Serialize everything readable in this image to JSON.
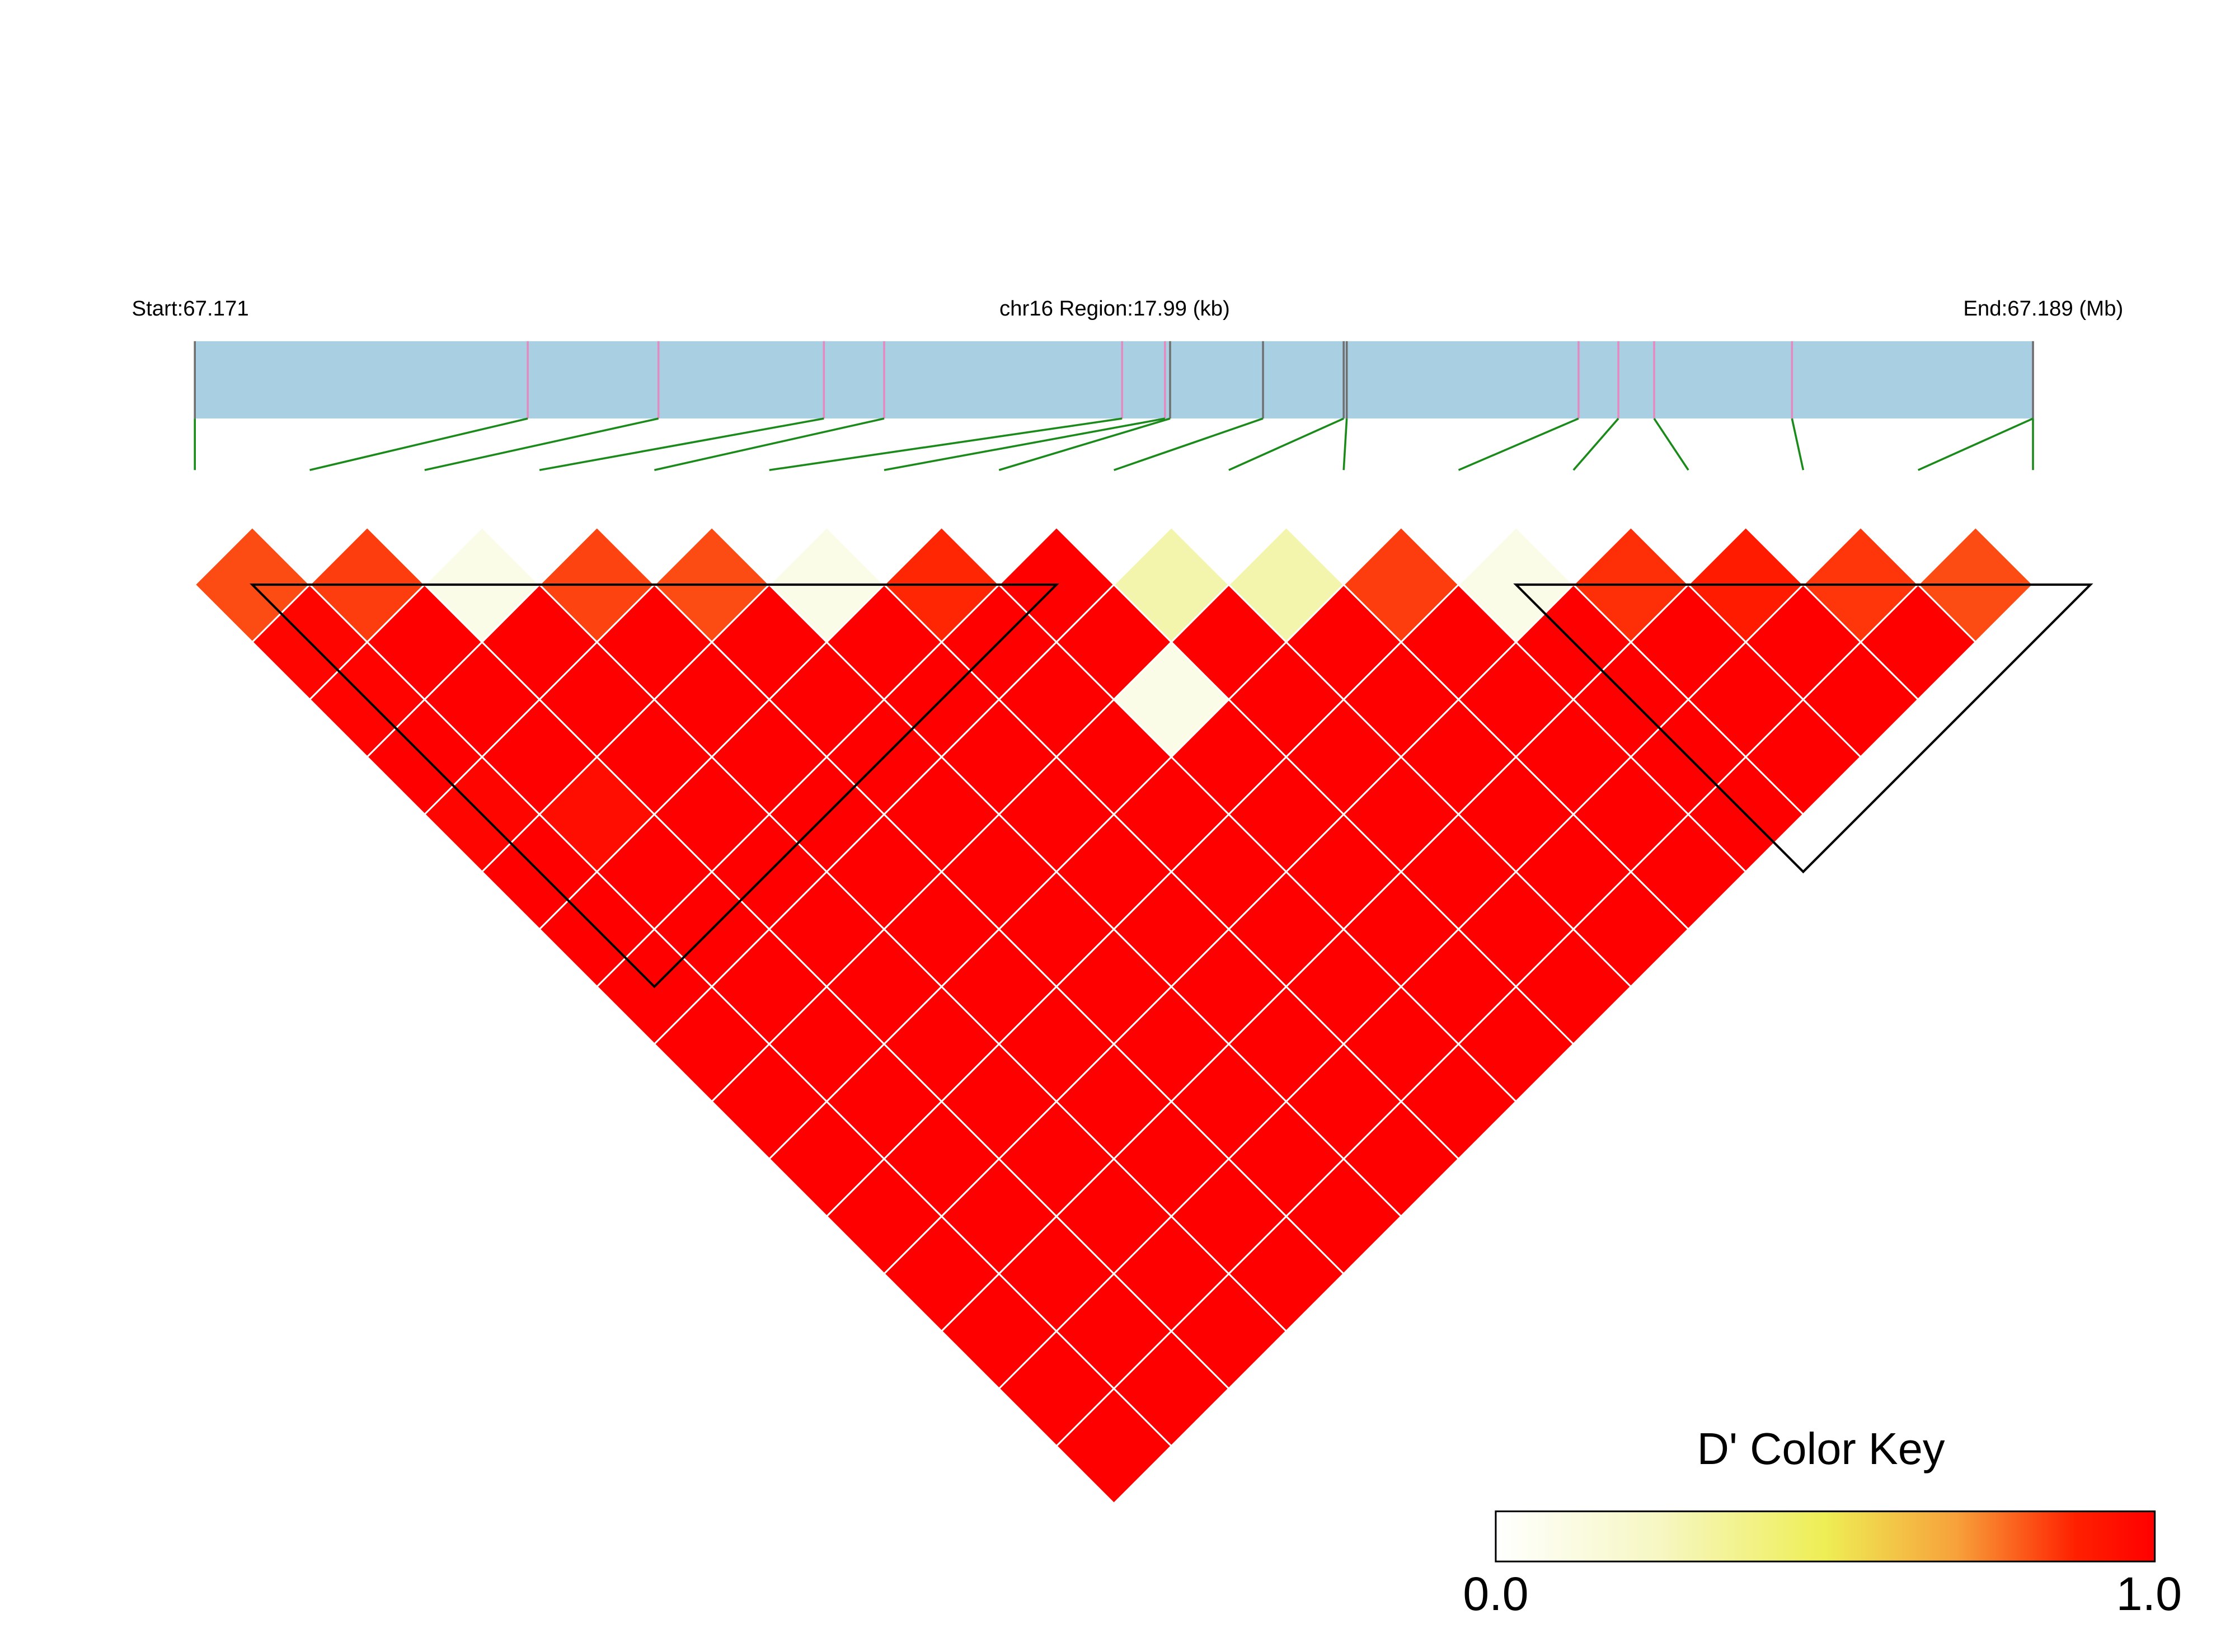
{
  "header": {
    "start_label": "Start:67.171",
    "region_label": "chr16 Region:17.99 (kb)",
    "end_label": "End:67.189 (Mb)"
  },
  "legend": {
    "title": "D' Color Key",
    "min_label": "0.0",
    "max_label": "1.0",
    "gradient_colors": [
      "#ffffff",
      "#f6f7c2",
      "#eeee55",
      "#f7a13a",
      "#ff2000",
      "#ff0000"
    ]
  },
  "colors": {
    "gene_bar": "#a8cfe2",
    "snp_marker_pink": "#e58ac0",
    "snp_marker_gray": "#707070",
    "connector_line": "#1a8a1a",
    "block_outline": "#000000",
    "cell_border": "#ffffff"
  },
  "chart_data": {
    "type": "heatmap",
    "title": "",
    "subtitle": "chr16 Region:17.99 (kb)",
    "region": {
      "chromosome": "chr16",
      "start_mb": 67.171,
      "end_mb": 67.189,
      "length_kb": 17.99
    },
    "value_range": [
      0.0,
      1.0
    ],
    "snp_count": 17,
    "snp_positions_mb": [
      67.171,
      67.17426,
      67.17554,
      67.17716,
      67.17775,
      67.18008,
      67.1805,
      67.18055,
      67.18146,
      67.18225,
      67.18228,
      67.18455,
      67.18494,
      67.18529,
      67.18664,
      67.189,
      67.189
    ],
    "snp_marker_colors": [
      "gray",
      "pink",
      "pink",
      "pink",
      "pink",
      "pink",
      "pink",
      "gray",
      "gray",
      "gray",
      "gray",
      "pink",
      "pink",
      "pink",
      "pink",
      "pink",
      "gray"
    ],
    "haplotype_blocks": [
      [
        2,
        8
      ],
      [
        13,
        17
      ]
    ],
    "dprime_matrix": [
      [
        null,
        0.82,
        0.98,
        0.99,
        1.0,
        0.98,
        1.0,
        1.0,
        1.0,
        1.0,
        1.0,
        1.0,
        1.0,
        1.0,
        1.0,
        1.0,
        1.0
      ],
      [
        0.82,
        null,
        0.84,
        1.0,
        1.0,
        1.0,
        0.95,
        1.0,
        1.0,
        1.0,
        1.0,
        1.0,
        1.0,
        1.0,
        1.0,
        1.0,
        1.0
      ],
      [
        0.98,
        0.84,
        null,
        0.1,
        1.0,
        1.0,
        1.0,
        1.0,
        1.0,
        1.0,
        1.0,
        1.0,
        1.0,
        1.0,
        1.0,
        1.0,
        1.0
      ],
      [
        0.99,
        1.0,
        0.1,
        null,
        0.83,
        1.0,
        1.0,
        1.0,
        1.0,
        1.0,
        1.0,
        1.0,
        1.0,
        1.0,
        1.0,
        1.0,
        1.0
      ],
      [
        1.0,
        1.0,
        1.0,
        0.83,
        null,
        0.82,
        1.0,
        1.0,
        1.0,
        1.0,
        1.0,
        1.0,
        1.0,
        1.0,
        1.0,
        1.0,
        1.0
      ],
      [
        0.98,
        1.0,
        1.0,
        1.0,
        0.82,
        null,
        0.1,
        1.0,
        1.0,
        1.0,
        1.0,
        1.0,
        1.0,
        1.0,
        1.0,
        1.0,
        1.0
      ],
      [
        1.0,
        0.95,
        1.0,
        1.0,
        1.0,
        0.1,
        null,
        0.87,
        1.0,
        1.0,
        1.0,
        1.0,
        1.0,
        1.0,
        1.0,
        1.0,
        1.0
      ],
      [
        1.0,
        1.0,
        1.0,
        1.0,
        1.0,
        1.0,
        0.87,
        null,
        1.0,
        1.0,
        0.1,
        1.0,
        1.0,
        1.0,
        1.0,
        1.0,
        1.0
      ],
      [
        1.0,
        1.0,
        1.0,
        1.0,
        1.0,
        1.0,
        1.0,
        1.0,
        null,
        0.3,
        1.0,
        1.0,
        1.0,
        1.0,
        1.0,
        1.0,
        1.0
      ],
      [
        1.0,
        1.0,
        1.0,
        1.0,
        1.0,
        1.0,
        1.0,
        1.0,
        0.3,
        null,
        0.3,
        1.0,
        1.0,
        1.0,
        1.0,
        1.0,
        1.0
      ],
      [
        1.0,
        1.0,
        1.0,
        1.0,
        1.0,
        1.0,
        1.0,
        0.1,
        1.0,
        0.3,
        null,
        0.84,
        1.0,
        1.0,
        1.0,
        1.0,
        1.0
      ],
      [
        1.0,
        1.0,
        1.0,
        1.0,
        1.0,
        1.0,
        1.0,
        1.0,
        1.0,
        1.0,
        0.84,
        null,
        0.1,
        1.0,
        1.0,
        1.0,
        1.0
      ],
      [
        1.0,
        1.0,
        1.0,
        1.0,
        1.0,
        1.0,
        1.0,
        1.0,
        1.0,
        1.0,
        1.0,
        0.1,
        null,
        0.86,
        1.0,
        1.0,
        1.0
      ],
      [
        1.0,
        1.0,
        1.0,
        1.0,
        1.0,
        1.0,
        1.0,
        1.0,
        1.0,
        1.0,
        1.0,
        1.0,
        0.86,
        null,
        0.9,
        1.0,
        1.0
      ],
      [
        1.0,
        1.0,
        1.0,
        1.0,
        1.0,
        1.0,
        1.0,
        1.0,
        1.0,
        1.0,
        1.0,
        1.0,
        1.0,
        0.9,
        null,
        0.85,
        1.0
      ],
      [
        1.0,
        1.0,
        1.0,
        1.0,
        1.0,
        1.0,
        1.0,
        1.0,
        1.0,
        1.0,
        1.0,
        1.0,
        1.0,
        1.0,
        0.85,
        null,
        0.82
      ],
      [
        1.0,
        1.0,
        1.0,
        1.0,
        1.0,
        1.0,
        1.0,
        1.0,
        1.0,
        1.0,
        1.0,
        1.0,
        1.0,
        1.0,
        1.0,
        0.82,
        null
      ]
    ]
  }
}
